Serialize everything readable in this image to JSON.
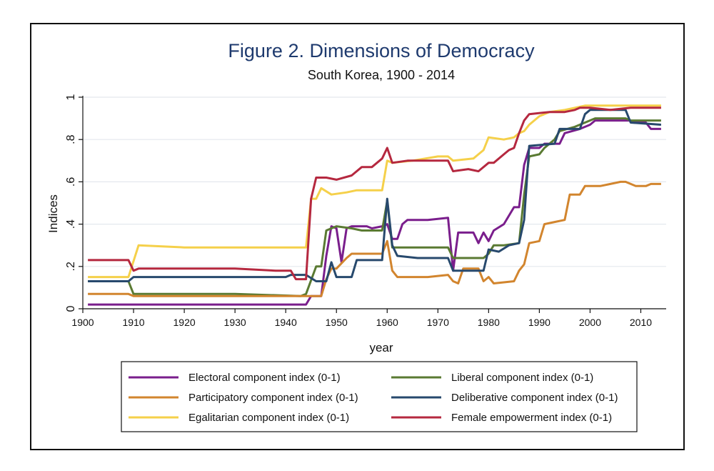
{
  "chart_data": {
    "type": "line",
    "title": "Figure 2. Dimensions of Democracy",
    "subtitle": "South Korea, 1900 - 2014",
    "xlabel": "year",
    "ylabel": "Indices",
    "xlim": [
      1900,
      2015
    ],
    "ylim": [
      0,
      1
    ],
    "x_ticks": [
      1900,
      1910,
      1920,
      1930,
      1940,
      1950,
      1960,
      1970,
      1980,
      1990,
      2000,
      2010
    ],
    "y_ticks": [
      0,
      0.2,
      0.4,
      0.6,
      0.8,
      1
    ],
    "y_tick_labels": [
      "0",
      ".2",
      ".4",
      ".6",
      ".8",
      "1"
    ],
    "grid": "horizontal",
    "legend_placement": "bottom",
    "series": [
      {
        "name": "Electoral component index (0-1)",
        "color": "#7a1e8c",
        "points": [
          [
            1901,
            0.02
          ],
          [
            1944,
            0.02
          ],
          [
            1945,
            0.06
          ],
          [
            1947,
            0.06
          ],
          [
            1948,
            0.25
          ],
          [
            1949,
            0.39
          ],
          [
            1950,
            0.38
          ],
          [
            1951,
            0.22
          ],
          [
            1952,
            0.38
          ],
          [
            1953,
            0.39
          ],
          [
            1956,
            0.39
          ],
          [
            1957,
            0.38
          ],
          [
            1959,
            0.39
          ],
          [
            1960,
            0.4
          ],
          [
            1961,
            0.33
          ],
          [
            1962,
            0.33
          ],
          [
            1963,
            0.4
          ],
          [
            1964,
            0.42
          ],
          [
            1968,
            0.42
          ],
          [
            1972,
            0.43
          ],
          [
            1973,
            0.18
          ],
          [
            1974,
            0.36
          ],
          [
            1977,
            0.36
          ],
          [
            1978,
            0.31
          ],
          [
            1979,
            0.36
          ],
          [
            1980,
            0.32
          ],
          [
            1981,
            0.37
          ],
          [
            1983,
            0.4
          ],
          [
            1985,
            0.48
          ],
          [
            1986,
            0.48
          ],
          [
            1987,
            0.68
          ],
          [
            1988,
            0.76
          ],
          [
            1990,
            0.76
          ],
          [
            1991,
            0.78
          ],
          [
            1994,
            0.78
          ],
          [
            1995,
            0.83
          ],
          [
            1998,
            0.85
          ],
          [
            2000,
            0.87
          ],
          [
            2001,
            0.89
          ],
          [
            2004,
            0.89
          ],
          [
            2008,
            0.89
          ],
          [
            2009,
            0.88
          ],
          [
            2011,
            0.88
          ],
          [
            2012,
            0.85
          ],
          [
            2014,
            0.85
          ]
        ]
      },
      {
        "name": "Liberal component index (0-1)",
        "color": "#5a7a32",
        "points": [
          [
            1901,
            0.13
          ],
          [
            1909,
            0.13
          ],
          [
            1910,
            0.07
          ],
          [
            1930,
            0.07
          ],
          [
            1943,
            0.06
          ],
          [
            1944,
            0.07
          ],
          [
            1946,
            0.2
          ],
          [
            1947,
            0.2
          ],
          [
            1948,
            0.37
          ],
          [
            1949,
            0.38
          ],
          [
            1950,
            0.39
          ],
          [
            1953,
            0.38
          ],
          [
            1955,
            0.37
          ],
          [
            1959,
            0.37
          ],
          [
            1960,
            0.51
          ],
          [
            1961,
            0.29
          ],
          [
            1964,
            0.29
          ],
          [
            1972,
            0.29
          ],
          [
            1973,
            0.24
          ],
          [
            1979,
            0.24
          ],
          [
            1980,
            0.26
          ],
          [
            1981,
            0.3
          ],
          [
            1983,
            0.3
          ],
          [
            1986,
            0.31
          ],
          [
            1987,
            0.54
          ],
          [
            1988,
            0.72
          ],
          [
            1990,
            0.73
          ],
          [
            1991,
            0.76
          ],
          [
            1993,
            0.8
          ],
          [
            1994,
            0.84
          ],
          [
            1997,
            0.86
          ],
          [
            1999,
            0.88
          ],
          [
            2001,
            0.9
          ],
          [
            2007,
            0.9
          ],
          [
            2008,
            0.89
          ],
          [
            2014,
            0.89
          ]
        ]
      },
      {
        "name": "Participatory component index (0-1)",
        "color": "#d2852e",
        "points": [
          [
            1901,
            0.07
          ],
          [
            1909,
            0.07
          ],
          [
            1910,
            0.06
          ],
          [
            1920,
            0.06
          ],
          [
            1930,
            0.06
          ],
          [
            1944,
            0.06
          ],
          [
            1945,
            0.06
          ],
          [
            1947,
            0.06
          ],
          [
            1948,
            0.14
          ],
          [
            1949,
            0.19
          ],
          [
            1950,
            0.19
          ],
          [
            1952,
            0.24
          ],
          [
            1953,
            0.26
          ],
          [
            1959,
            0.26
          ],
          [
            1960,
            0.32
          ],
          [
            1961,
            0.18
          ],
          [
            1962,
            0.15
          ],
          [
            1968,
            0.15
          ],
          [
            1972,
            0.16
          ],
          [
            1973,
            0.13
          ],
          [
            1974,
            0.12
          ],
          [
            1975,
            0.19
          ],
          [
            1977,
            0.19
          ],
          [
            1978,
            0.19
          ],
          [
            1979,
            0.13
          ],
          [
            1980,
            0.15
          ],
          [
            1981,
            0.12
          ],
          [
            1985,
            0.13
          ],
          [
            1986,
            0.18
          ],
          [
            1987,
            0.21
          ],
          [
            1988,
            0.31
          ],
          [
            1990,
            0.32
          ],
          [
            1991,
            0.4
          ],
          [
            1993,
            0.41
          ],
          [
            1995,
            0.42
          ],
          [
            1996,
            0.54
          ],
          [
            1998,
            0.54
          ],
          [
            1999,
            0.58
          ],
          [
            2002,
            0.58
          ],
          [
            2004,
            0.59
          ],
          [
            2006,
            0.6
          ],
          [
            2007,
            0.6
          ],
          [
            2009,
            0.58
          ],
          [
            2011,
            0.58
          ],
          [
            2012,
            0.59
          ],
          [
            2014,
            0.59
          ]
        ]
      },
      {
        "name": "Deliberative component index (0-1)",
        "color": "#27496d",
        "points": [
          [
            1901,
            0.13
          ],
          [
            1909,
            0.13
          ],
          [
            1910,
            0.15
          ],
          [
            1920,
            0.15
          ],
          [
            1930,
            0.15
          ],
          [
            1940,
            0.15
          ],
          [
            1941,
            0.16
          ],
          [
            1944,
            0.16
          ],
          [
            1946,
            0.13
          ],
          [
            1948,
            0.13
          ],
          [
            1949,
            0.22
          ],
          [
            1950,
            0.15
          ],
          [
            1953,
            0.15
          ],
          [
            1954,
            0.23
          ],
          [
            1959,
            0.23
          ],
          [
            1960,
            0.52
          ],
          [
            1961,
            0.3
          ],
          [
            1962,
            0.25
          ],
          [
            1966,
            0.24
          ],
          [
            1972,
            0.24
          ],
          [
            1973,
            0.18
          ],
          [
            1975,
            0.18
          ],
          [
            1979,
            0.18
          ],
          [
            1980,
            0.28
          ],
          [
            1982,
            0.27
          ],
          [
            1984,
            0.3
          ],
          [
            1986,
            0.31
          ],
          [
            1987,
            0.42
          ],
          [
            1988,
            0.77
          ],
          [
            1993,
            0.78
          ],
          [
            1994,
            0.85
          ],
          [
            1998,
            0.85
          ],
          [
            1999,
            0.92
          ],
          [
            2000,
            0.94
          ],
          [
            2004,
            0.94
          ],
          [
            2007,
            0.94
          ],
          [
            2008,
            0.88
          ],
          [
            2014,
            0.87
          ]
        ]
      },
      {
        "name": "Egalitarian component index (0-1)",
        "color": "#f5d04a",
        "points": [
          [
            1901,
            0.15
          ],
          [
            1909,
            0.15
          ],
          [
            1911,
            0.3
          ],
          [
            1920,
            0.29
          ],
          [
            1930,
            0.29
          ],
          [
            1944,
            0.29
          ],
          [
            1945,
            0.52
          ],
          [
            1946,
            0.52
          ],
          [
            1947,
            0.57
          ],
          [
            1949,
            0.54
          ],
          [
            1952,
            0.55
          ],
          [
            1954,
            0.56
          ],
          [
            1959,
            0.56
          ],
          [
            1960,
            0.7
          ],
          [
            1961,
            0.69
          ],
          [
            1965,
            0.7
          ],
          [
            1970,
            0.72
          ],
          [
            1972,
            0.72
          ],
          [
            1973,
            0.7
          ],
          [
            1977,
            0.71
          ],
          [
            1978,
            0.73
          ],
          [
            1979,
            0.75
          ],
          [
            1980,
            0.81
          ],
          [
            1983,
            0.8
          ],
          [
            1985,
            0.81
          ],
          [
            1986,
            0.83
          ],
          [
            1987,
            0.84
          ],
          [
            1988,
            0.87
          ],
          [
            1990,
            0.91
          ],
          [
            1992,
            0.93
          ],
          [
            1995,
            0.94
          ],
          [
            1997,
            0.95
          ],
          [
            1999,
            0.96
          ],
          [
            2005,
            0.96
          ],
          [
            2010,
            0.96
          ],
          [
            2014,
            0.96
          ]
        ]
      },
      {
        "name": "Female empowerment index (0-1)",
        "color": "#b5283f",
        "points": [
          [
            1901,
            0.23
          ],
          [
            1908,
            0.23
          ],
          [
            1909,
            0.23
          ],
          [
            1910,
            0.18
          ],
          [
            1911,
            0.19
          ],
          [
            1920,
            0.19
          ],
          [
            1930,
            0.19
          ],
          [
            1938,
            0.18
          ],
          [
            1941,
            0.18
          ],
          [
            1942,
            0.14
          ],
          [
            1944,
            0.14
          ],
          [
            1945,
            0.52
          ],
          [
            1946,
            0.62
          ],
          [
            1948,
            0.62
          ],
          [
            1950,
            0.61
          ],
          [
            1953,
            0.63
          ],
          [
            1955,
            0.67
          ],
          [
            1957,
            0.67
          ],
          [
            1959,
            0.71
          ],
          [
            1960,
            0.76
          ],
          [
            1961,
            0.69
          ],
          [
            1964,
            0.7
          ],
          [
            1968,
            0.7
          ],
          [
            1972,
            0.7
          ],
          [
            1973,
            0.65
          ],
          [
            1976,
            0.66
          ],
          [
            1978,
            0.65
          ],
          [
            1980,
            0.69
          ],
          [
            1981,
            0.69
          ],
          [
            1983,
            0.73
          ],
          [
            1984,
            0.75
          ],
          [
            1985,
            0.76
          ],
          [
            1986,
            0.83
          ],
          [
            1987,
            0.89
          ],
          [
            1988,
            0.92
          ],
          [
            1992,
            0.93
          ],
          [
            1995,
            0.93
          ],
          [
            1997,
            0.94
          ],
          [
            1998,
            0.95
          ],
          [
            2000,
            0.95
          ],
          [
            2004,
            0.94
          ],
          [
            2008,
            0.95
          ],
          [
            2014,
            0.95
          ]
        ]
      }
    ],
    "legend_order": [
      0,
      1,
      2,
      3,
      4,
      5
    ]
  }
}
